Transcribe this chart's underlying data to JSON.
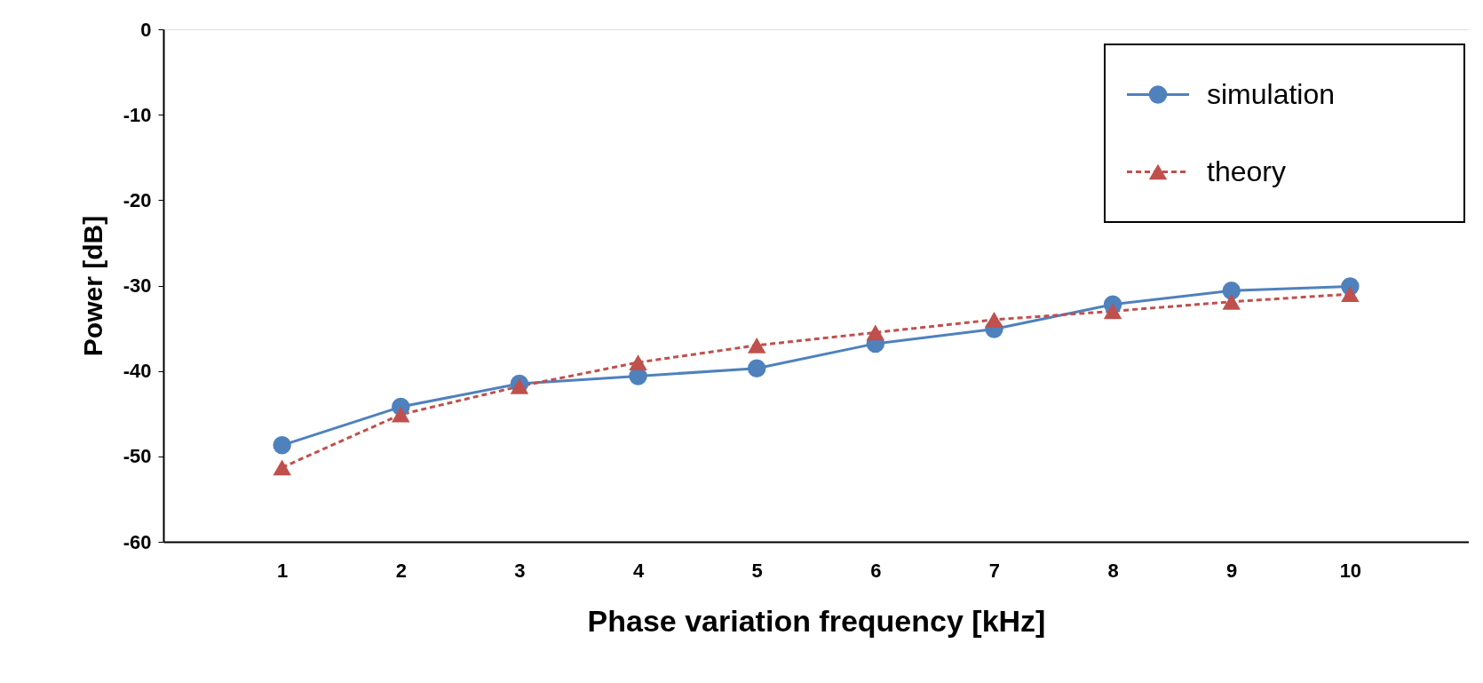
{
  "chart_data": {
    "type": "line",
    "xlabel": "Phase variation frequency   [kHz]",
    "ylabel": "Power [dB]",
    "categories": [
      "1",
      "2",
      "3",
      "4",
      "5",
      "6",
      "7",
      "8",
      "9",
      "10"
    ],
    "series": [
      {
        "name": "simulation",
        "color": "#4f81bd",
        "marker": "circle",
        "line_style": "solid",
        "values": [
          -48.7,
          -44.2,
          -41.5,
          -40.6,
          -39.7,
          -36.8,
          -35.1,
          -32.2,
          -30.6,
          -30.1
        ]
      },
      {
        "name": "theory",
        "color": "#c0504d",
        "marker": "triangle",
        "line_style": "dashed",
        "values": [
          -51.3,
          -45.1,
          -41.8,
          -39.0,
          -37.0,
          -35.5,
          -34.0,
          -33.0,
          -31.9,
          -31.0
        ]
      }
    ],
    "ylim": [
      -60,
      0
    ],
    "yticks": [
      -60,
      -50,
      -40,
      -30,
      -20,
      -10,
      0
    ],
    "grid": false,
    "legend": "top right"
  }
}
